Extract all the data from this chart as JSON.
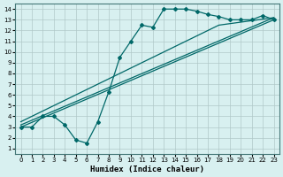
{
  "xlabel": "Humidex (Indice chaleur)",
  "background_color": "#d8f0f0",
  "grid_color": "#b0c8c8",
  "line_color": "#006868",
  "xlim": [
    -0.5,
    23.5
  ],
  "ylim": [
    0.5,
    14.5
  ],
  "xticks": [
    0,
    1,
    2,
    3,
    4,
    5,
    6,
    7,
    8,
    9,
    10,
    11,
    12,
    13,
    14,
    15,
    16,
    17,
    18,
    19,
    20,
    21,
    22,
    23
  ],
  "yticks": [
    1,
    2,
    3,
    4,
    5,
    6,
    7,
    8,
    9,
    10,
    11,
    12,
    13,
    14
  ],
  "jagged_x": [
    0,
    1,
    2,
    3,
    4,
    5,
    6,
    7,
    8,
    9,
    10,
    11,
    12,
    13,
    14,
    15,
    16,
    17,
    18,
    19,
    20,
    21,
    22,
    23
  ],
  "jagged_y": [
    3.0,
    3.0,
    4.0,
    4.0,
    3.2,
    1.8,
    1.5,
    3.5,
    6.3,
    9.5,
    11.0,
    12.5,
    12.3,
    14.0,
    14.0,
    14.0,
    13.8,
    13.5,
    13.3,
    13.0,
    13.0,
    13.0,
    13.4,
    13.0
  ],
  "line2_x": [
    0,
    23
  ],
  "line2_y": [
    3.0,
    13.0
  ],
  "line3_x": [
    0,
    23
  ],
  "line3_y": [
    3.2,
    13.2
  ],
  "line4_x": [
    0,
    9,
    18,
    23
  ],
  "line4_y": [
    3.5,
    8.0,
    12.5,
    13.2
  ]
}
